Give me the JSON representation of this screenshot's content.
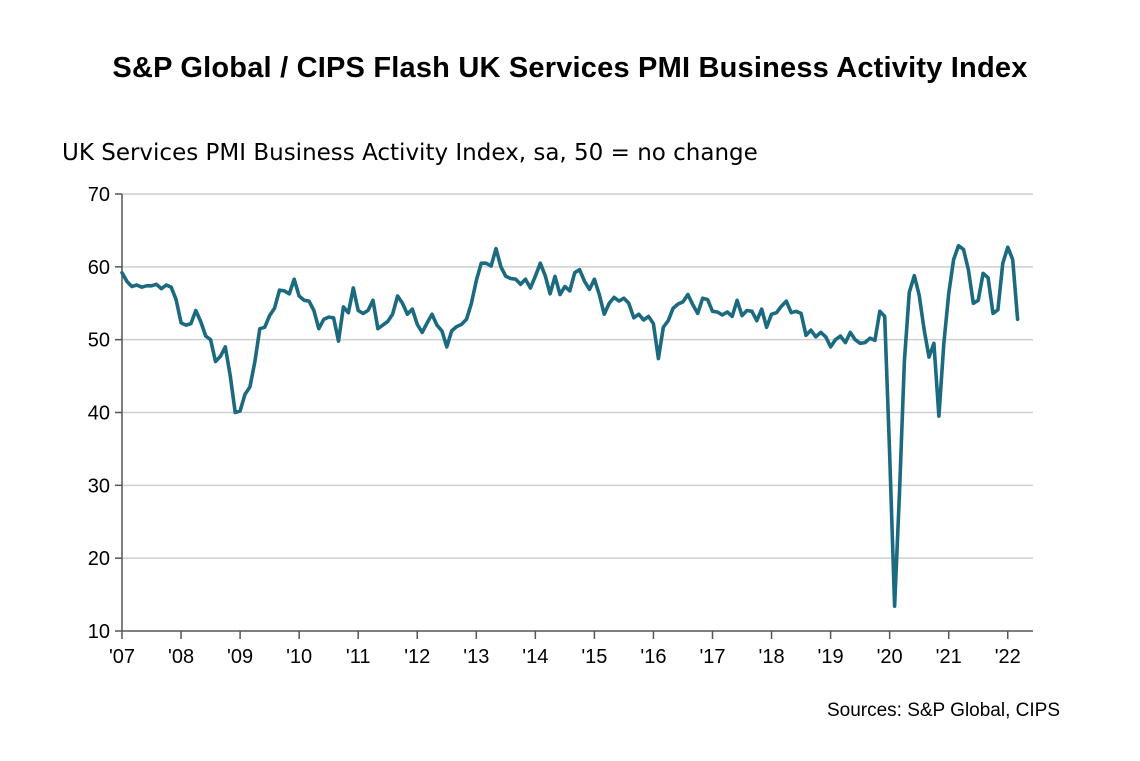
{
  "title": "S&P Global / CIPS Flash UK Services PMI Business Activity Index",
  "source": "Sources: S&P Global, CIPS",
  "chart_data": {
    "type": "line",
    "subtitle": "UK Services PMI Business Activity Index, sa, 50 = no change",
    "xlabel": "",
    "ylabel": "",
    "ylim": [
      10,
      70
    ],
    "yticks": [
      "10",
      "20",
      "30",
      "40",
      "50",
      "60",
      "70"
    ],
    "xticks": [
      "'07",
      "'08",
      "'09",
      "'10",
      "'11",
      "'12",
      "'13",
      "'14",
      "'15",
      "'16",
      "'17",
      "'18",
      "'19",
      "'20",
      "'21",
      "'22"
    ],
    "grid": true,
    "color": "#1b6a80",
    "series": [
      {
        "x_start": "2007-01",
        "x_end": "2022-05",
        "frequency": "monthly",
        "values": [
          59.2,
          58.0,
          57.3,
          57.5,
          57.2,
          57.4,
          57.4,
          57.6,
          57.0,
          57.5,
          57.2,
          55.5,
          52.3,
          52.0,
          52.2,
          54.0,
          52.5,
          50.5,
          50.0,
          47.0,
          47.7,
          49.0,
          45.0,
          40.0,
          40.2,
          42.5,
          43.5,
          47.0,
          51.5,
          51.7,
          53.3,
          54.3,
          56.8,
          56.7,
          56.3,
          58.3,
          56.0,
          55.4,
          55.3,
          54.0,
          51.5,
          52.8,
          53.1,
          53.0,
          49.8,
          54.5,
          53.7,
          57.1,
          54.0,
          53.6,
          54.0,
          55.4,
          51.5,
          52.0,
          52.5,
          53.5,
          56.0,
          55.0,
          53.5,
          54.2,
          52.1,
          51.0,
          52.3,
          53.5,
          52.0,
          51.2,
          49.0,
          51.2,
          51.8,
          52.1,
          52.8,
          55.0,
          58.1,
          60.5,
          60.5,
          60.1,
          62.5,
          60.0,
          58.7,
          58.4,
          58.3,
          57.6,
          58.3,
          57.1,
          58.7,
          60.5,
          58.8,
          56.3,
          58.7,
          56.2,
          57.3,
          56.7,
          59.2,
          59.6,
          58.0,
          56.9,
          58.3,
          56.2,
          53.5,
          55.0,
          55.8,
          55.3,
          55.7,
          55.0,
          53.0,
          53.5,
          52.7,
          53.2,
          52.2,
          47.4,
          51.7,
          52.6,
          54.3,
          54.9,
          55.2,
          56.2,
          54.8,
          53.6,
          55.7,
          55.5,
          53.9,
          53.8,
          53.4,
          53.8,
          53.2,
          55.4,
          53.3,
          54.0,
          53.9,
          52.6,
          54.2,
          51.7,
          53.5,
          53.7,
          54.6,
          55.3,
          53.7,
          53.9,
          53.6,
          50.6,
          51.3,
          50.4,
          51.0,
          50.4,
          49.0,
          50.0,
          50.5,
          49.6,
          51.0,
          50.0,
          49.5,
          49.6,
          50.2,
          49.9,
          53.9,
          53.2,
          34.5,
          13.4,
          29.0,
          47.1,
          56.5,
          58.8,
          56.1,
          51.4,
          47.6,
          49.5,
          39.5,
          49.4,
          56.3,
          61.0,
          62.9,
          62.4,
          59.6,
          55.0,
          55.4,
          59.1,
          58.5,
          53.6,
          54.1,
          60.5,
          62.7,
          61.0,
          52.8
        ]
      }
    ]
  }
}
